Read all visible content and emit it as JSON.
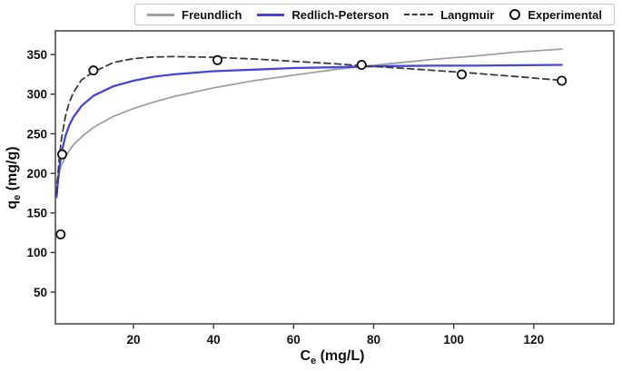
{
  "figure": {
    "background": "#ffffff",
    "plot_border_color": "#4d4d4d"
  },
  "legend": {
    "items": [
      {
        "label": "Freundlich",
        "marker": "solid-line",
        "color": "#a0a0a0"
      },
      {
        "label": "Redlich-Peterson",
        "marker": "solid-line",
        "color": "#4545e0"
      },
      {
        "label": "Langmuir",
        "marker": "dashed-line",
        "color": "#3a3a3a"
      },
      {
        "label": "Experimental",
        "marker": "open-circle",
        "color": "#111111"
      }
    ]
  },
  "chart_data": {
    "type": "line",
    "title": "",
    "xlabel": "Ce (mg/L)",
    "xlabel_parts": [
      "C",
      "e",
      " (mg/L)"
    ],
    "ylabel": "qe (mg/g)",
    "ylabel_parts": [
      "q",
      "e",
      " (mg/g)"
    ],
    "xlim": [
      0.5,
      140
    ],
    "ylim": [
      10,
      380
    ],
    "xticks": [
      20,
      40,
      60,
      80,
      100,
      120
    ],
    "yticks": [
      50,
      100,
      150,
      200,
      250,
      300,
      350
    ],
    "grid": false,
    "legend_position": "top-center",
    "series": [
      {
        "name": "Freundlich",
        "style": "solid",
        "color": "#a0a0a0",
        "width": 1.8,
        "x": [
          0.8,
          1,
          1.5,
          2,
          3,
          4,
          5,
          7,
          10,
          15,
          20,
          25,
          30,
          40,
          50,
          60,
          70,
          77,
          85,
          95,
          105,
          115,
          127
        ],
        "y": [
          187,
          192,
          202,
          210,
          221,
          229,
          236,
          246,
          258,
          272,
          282,
          290,
          297,
          308,
          317,
          324,
          331,
          335,
          339,
          344,
          348,
          353,
          357
        ]
      },
      {
        "name": "Redlich-Peterson",
        "style": "solid",
        "color": "#4545e0",
        "width": 2.3,
        "x": [
          0.8,
          1,
          1.5,
          2,
          3,
          4,
          5,
          7,
          10,
          15,
          20,
          25,
          30,
          40,
          50,
          60,
          70,
          77,
          85,
          95,
          105,
          115,
          127
        ],
        "y": [
          170,
          182,
          207,
          225,
          247,
          261,
          271,
          285,
          298,
          310,
          317,
          322,
          325,
          329,
          331,
          333,
          334,
          335,
          335.5,
          336,
          336,
          336.5,
          337
        ]
      },
      {
        "name": "Langmuir",
        "style": "dashed",
        "color": "#3a3a3a",
        "width": 1.8,
        "x": [
          0.8,
          1,
          1.5,
          2,
          3,
          4,
          5,
          7,
          10,
          15,
          20,
          25,
          30,
          40,
          50,
          60,
          70,
          77,
          85,
          95,
          105,
          115,
          127
        ],
        "y": [
          175,
          190,
          220,
          243,
          272,
          290,
          302,
          318,
          328,
          340,
          345,
          347,
          347.5,
          346.5,
          344.5,
          341.5,
          338.5,
          336,
          333.5,
          330,
          326.5,
          322.5,
          317.5
        ]
      },
      {
        "name": "Experimental",
        "style": "scatter",
        "color": "#111111",
        "x": [
          1.8,
          2.2,
          10,
          41,
          77,
          102,
          127
        ],
        "y": [
          123,
          224,
          330,
          343,
          337,
          325,
          317
        ]
      }
    ]
  }
}
